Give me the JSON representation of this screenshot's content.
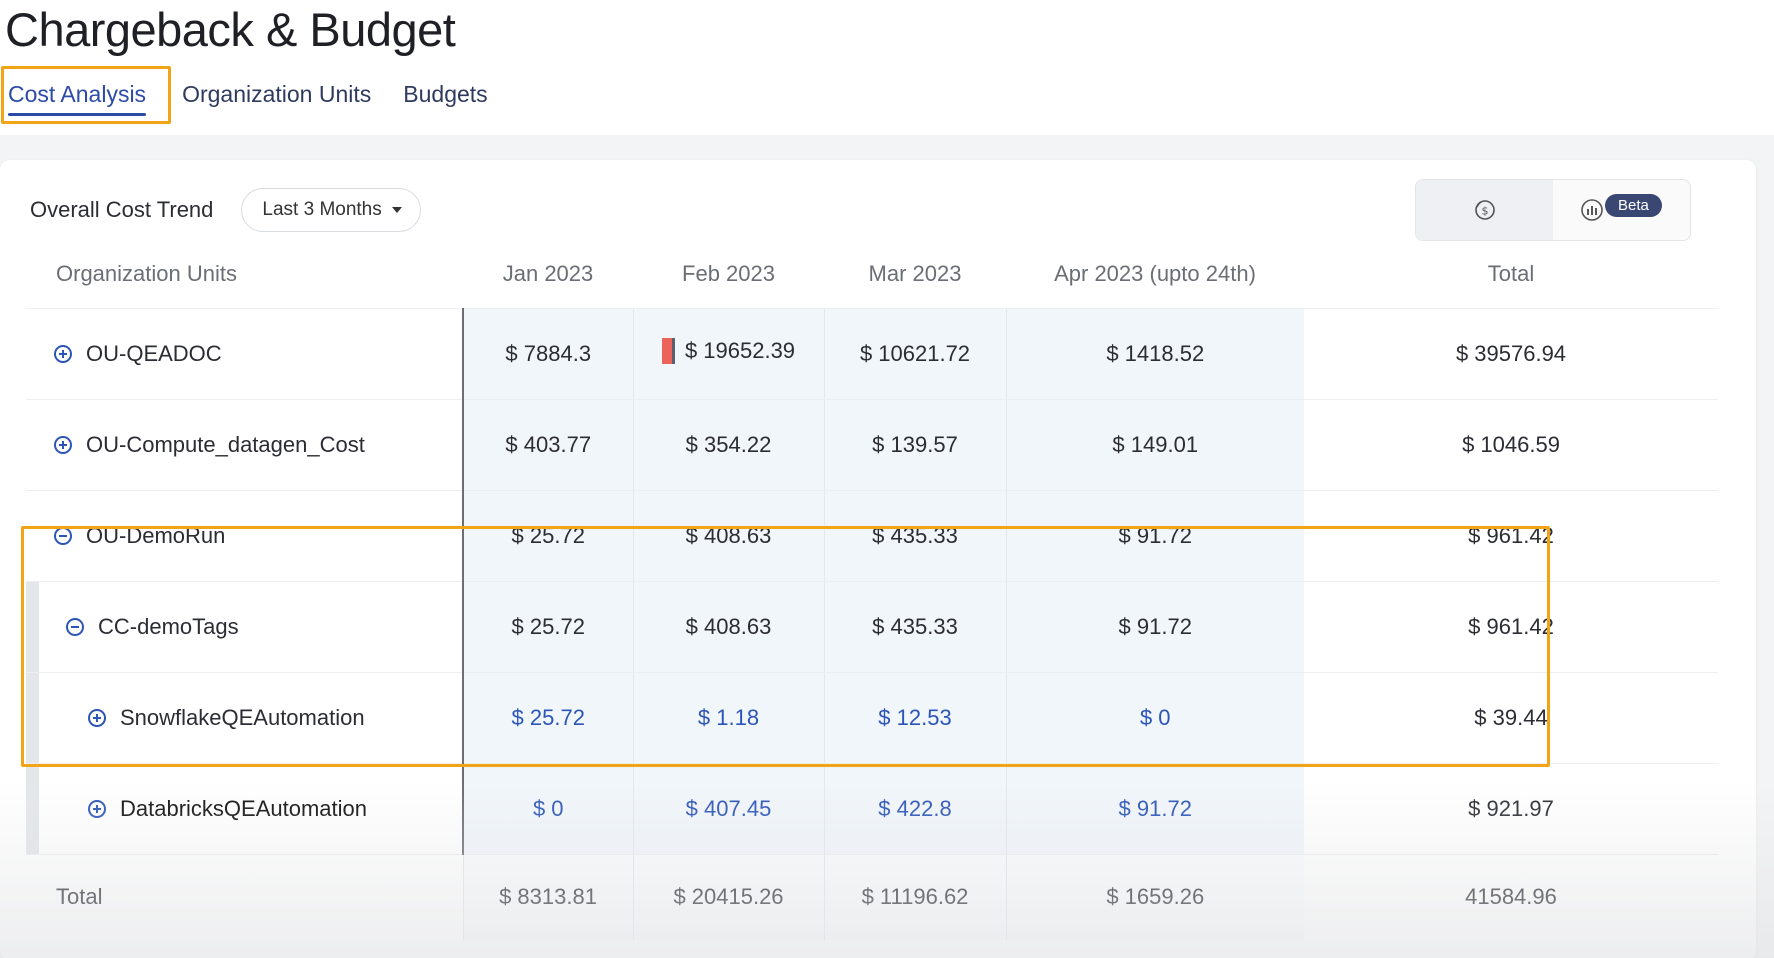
{
  "header": {
    "title": "Chargeback & Budget",
    "tabs": [
      {
        "label": "Cost Analysis"
      },
      {
        "label": "Organization Units"
      },
      {
        "label": "Budgets"
      }
    ]
  },
  "card": {
    "trend_label": "Overall Cost Trend",
    "range": "Last 3 Months",
    "toggle": {
      "cost_view_icon": "dollar-circle-icon",
      "chart_view_icon": "bar-chart-icon",
      "beta": "Beta"
    }
  },
  "table": {
    "columns": [
      "Organization Units",
      "Jan 2023",
      "Feb 2023",
      "Mar 2023",
      "Apr 2023 (upto 24th)",
      "Total"
    ],
    "rows": [
      {
        "name": "OU-QEADOC",
        "jan": "$ 7884.3",
        "feb": "$ 19652.39",
        "mar": "$ 10621.72",
        "apr": "$ 1418.52",
        "total": "$ 39576.94"
      },
      {
        "name": "OU-Compute_datagen_Cost",
        "jan": "$ 403.77",
        "feb": "$ 354.22",
        "mar": "$ 139.57",
        "apr": "$ 149.01",
        "total": "$ 1046.59"
      },
      {
        "name": "OU-DemoRun",
        "jan": "$ 25.72",
        "feb": "$ 408.63",
        "mar": "$ 435.33",
        "apr": "$ 91.72",
        "total": "$ 961.42"
      },
      {
        "name": "CC-demoTags",
        "jan": "$ 25.72",
        "feb": "$ 408.63",
        "mar": "$ 435.33",
        "apr": "$ 91.72",
        "total": "$ 961.42"
      },
      {
        "name": "SnowflakeQEAutomation",
        "jan": "$ 25.72",
        "feb": "$ 1.18",
        "mar": "$ 12.53",
        "apr": "$ 0",
        "total": "$ 39.44"
      },
      {
        "name": "DatabricksQEAutomation",
        "jan": "$ 0",
        "feb": "$ 407.45",
        "mar": "$ 422.8",
        "apr": "$ 91.72",
        "total": "$ 921.97"
      }
    ],
    "total_row": {
      "name": "Total",
      "jan": "$ 8313.81",
      "feb": "$ 20415.26",
      "mar": "$ 11196.62",
      "apr": "$ 1659.26",
      "total": "41584.96"
    }
  },
  "colors": {
    "accent": "#2c4aa8",
    "highlight": "#f2a417",
    "flag": "#ec6459"
  }
}
